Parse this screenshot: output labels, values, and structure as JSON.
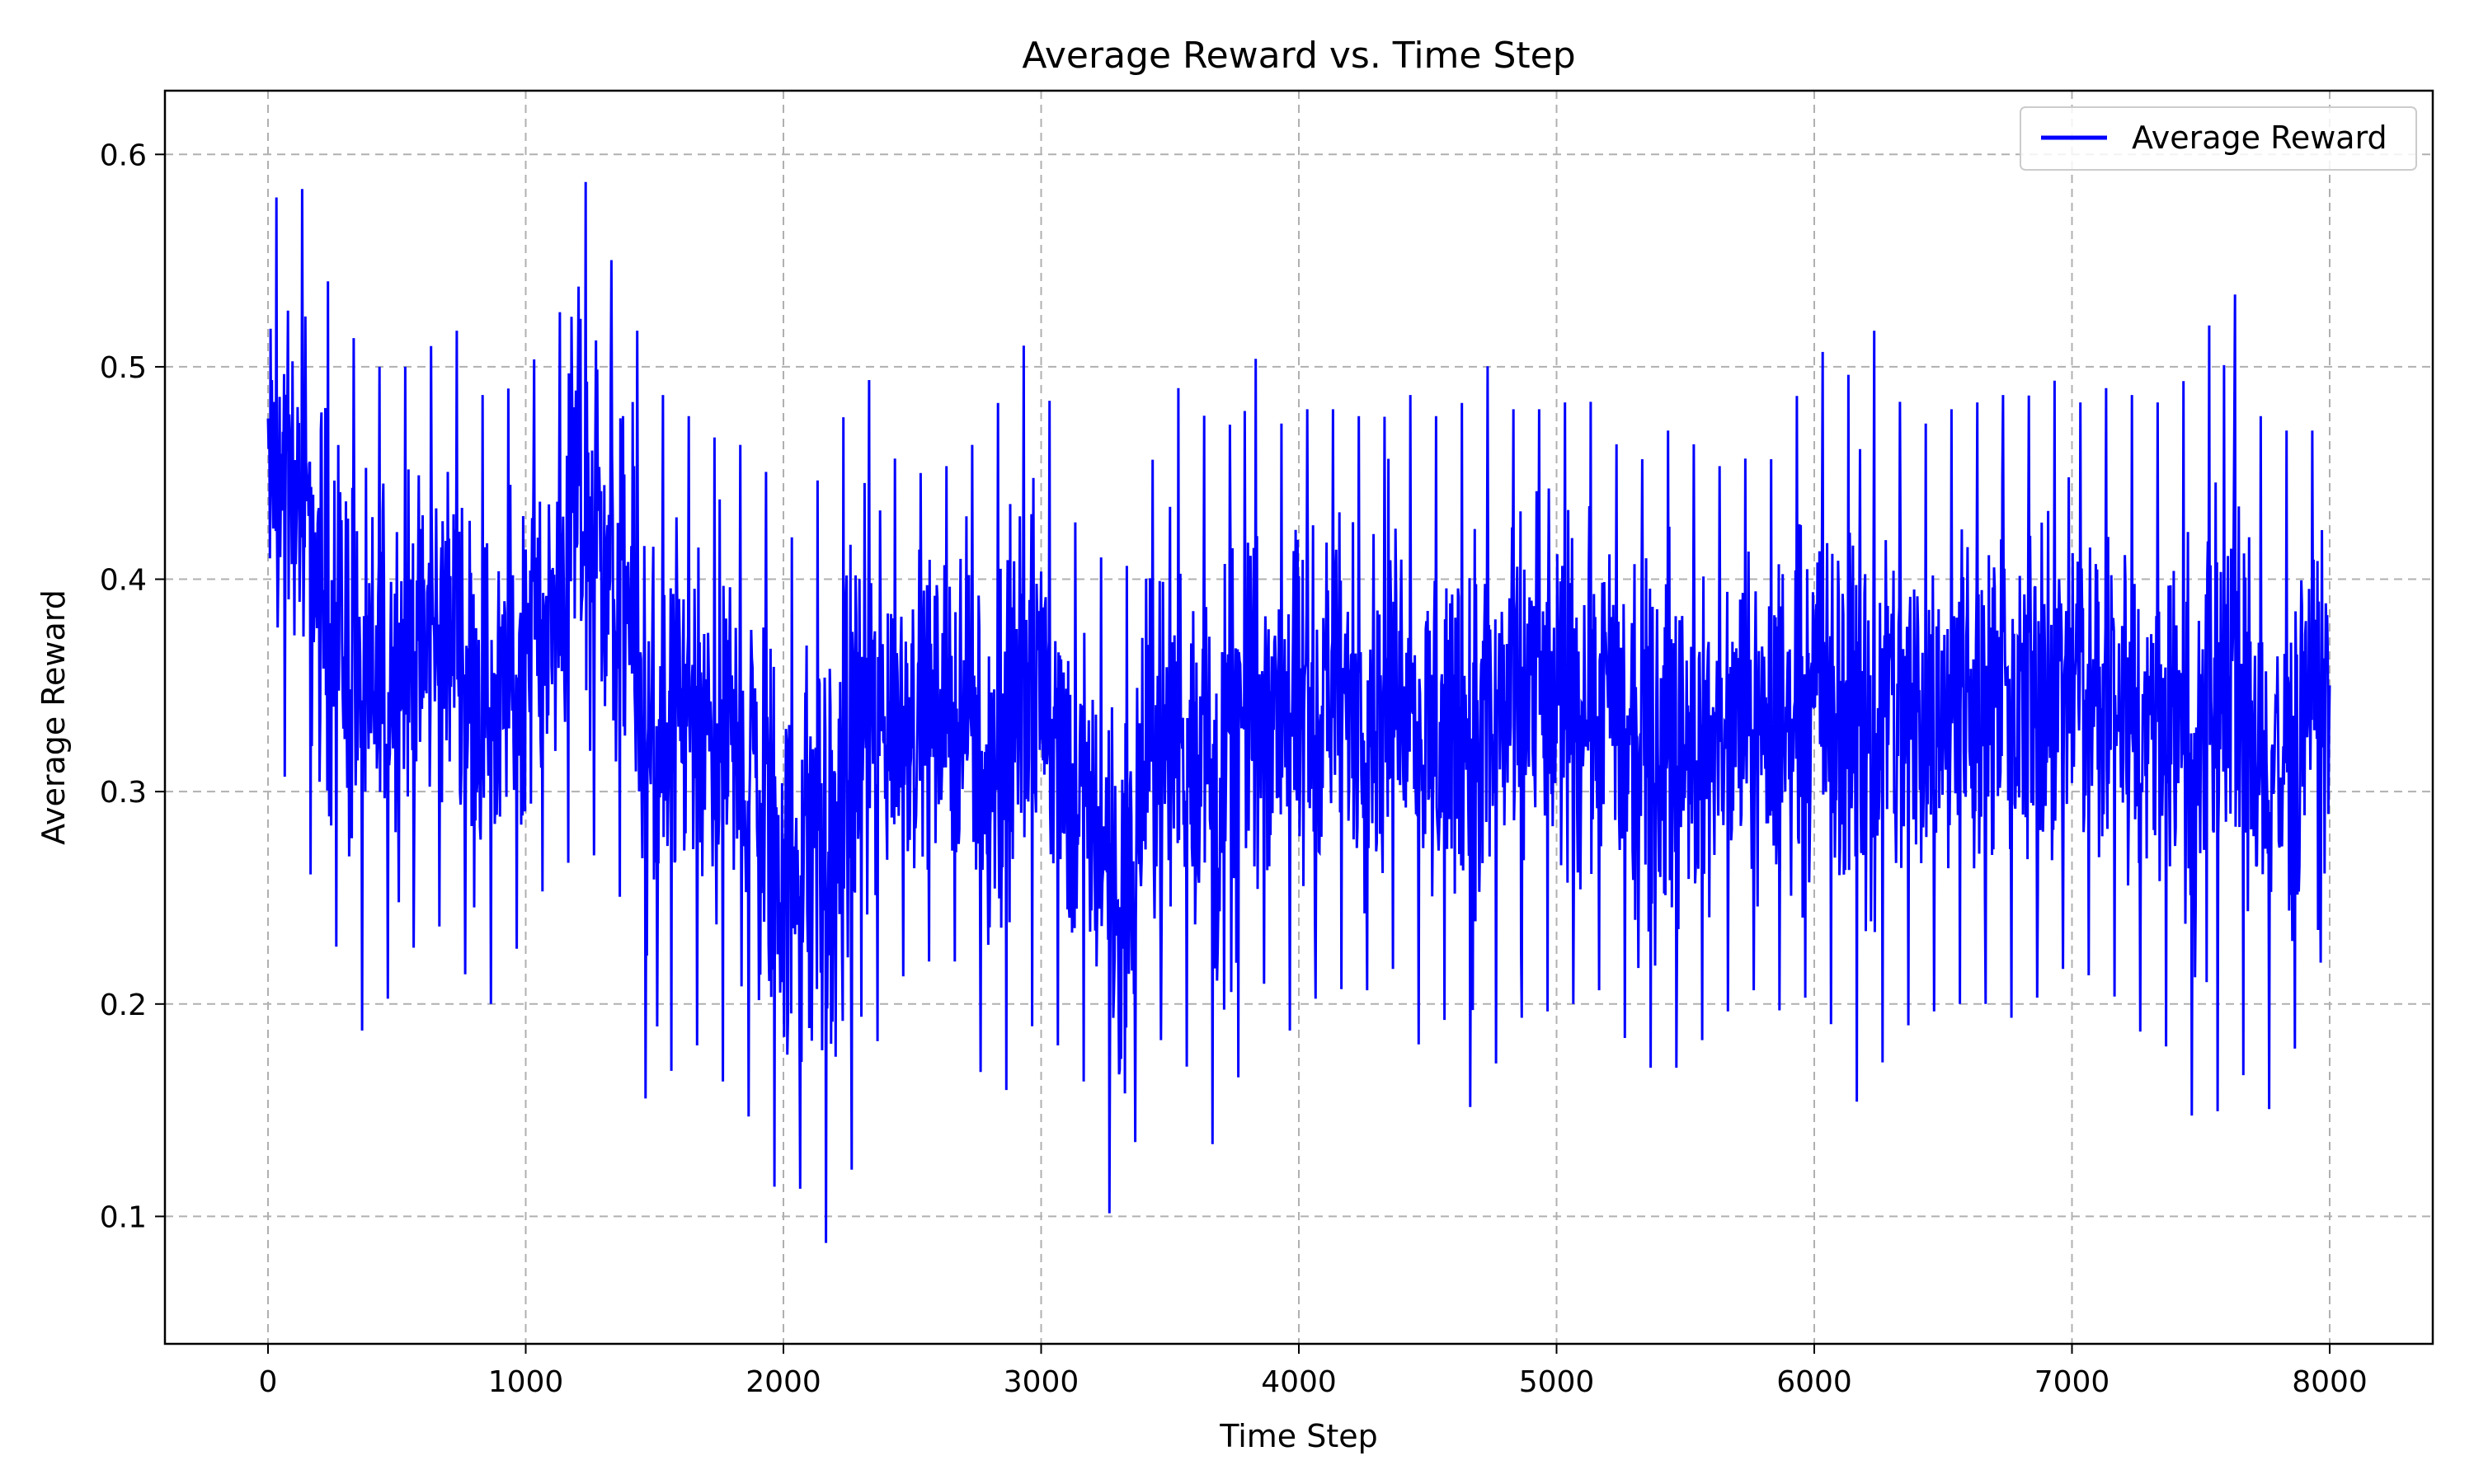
{
  "chart_data": {
    "type": "line",
    "title": "Average Reward vs. Time Step",
    "xlabel": "Time Step",
    "ylabel": "Average Reward",
    "xlim": [
      -400,
      8400
    ],
    "ylim": [
      0.04,
      0.63
    ],
    "xticks": [
      0,
      1000,
      2000,
      3000,
      4000,
      5000,
      6000,
      7000,
      8000
    ],
    "yticks": [
      0.1,
      0.2,
      0.3,
      0.4,
      0.5,
      0.6
    ],
    "grid": true,
    "legend_position": "top-right",
    "series": [
      {
        "name": "Average Reward",
        "color": "#0000ff",
        "x": [
          0,
          100,
          200,
          300,
          400,
          500,
          600,
          700,
          800,
          900,
          1000,
          1100,
          1200,
          1300,
          1400,
          1500,
          1600,
          1700,
          1800,
          1900,
          2000,
          2100,
          2200,
          2300,
          2400,
          2500,
          2600,
          2700,
          2800,
          2900,
          3000,
          3100,
          3200,
          3300,
          3400,
          3500,
          3600,
          3700,
          3800,
          3900,
          4000,
          4100,
          4200,
          4300,
          4400,
          4500,
          4600,
          4700,
          4800,
          4900,
          5000,
          5100,
          5200,
          5300,
          5400,
          5500,
          5600,
          5700,
          5800,
          5900,
          6000,
          6100,
          6200,
          6300,
          6400,
          6500,
          6600,
          6700,
          6800,
          6900,
          7000,
          7100,
          7200,
          7300,
          7400,
          7500,
          7600,
          7700,
          7800,
          7900,
          8000
        ],
        "min": [
          0.32,
          0.3,
          0.24,
          0.22,
          0.17,
          0.22,
          0.23,
          0.24,
          0.2,
          0.2,
          0.24,
          0.26,
          0.27,
          0.27,
          0.24,
          0.11,
          0.2,
          0.17,
          0.16,
          0.14,
          0.1,
          0.12,
          0.07,
          0.15,
          0.2,
          0.22,
          0.22,
          0.22,
          0.14,
          0.17,
          0.2,
          0.17,
          0.16,
          0.07,
          0.17,
          0.19,
          0.16,
          0.12,
          0.19,
          0.22,
          0.17,
          0.22,
          0.2,
          0.21,
          0.22,
          0.16,
          0.21,
          0.12,
          0.2,
          0.19,
          0.2,
          0.2,
          0.21,
          0.17,
          0.17,
          0.17,
          0.19,
          0.2,
          0.21,
          0.19,
          0.21,
          0.18,
          0.14,
          0.19,
          0.19,
          0.2,
          0.2,
          0.2,
          0.19,
          0.21,
          0.22,
          0.21,
          0.2,
          0.18,
          0.18,
          0.13,
          0.16,
          0.17,
          0.14,
          0.2,
          0.23
        ],
        "max": [
          0.57,
          0.6,
          0.55,
          0.52,
          0.5,
          0.5,
          0.5,
          0.53,
          0.49,
          0.48,
          0.51,
          0.49,
          0.6,
          0.56,
          0.53,
          0.49,
          0.48,
          0.47,
          0.46,
          0.47,
          0.41,
          0.44,
          0.46,
          0.51,
          0.46,
          0.45,
          0.45,
          0.46,
          0.47,
          0.51,
          0.51,
          0.43,
          0.42,
          0.39,
          0.44,
          0.49,
          0.49,
          0.45,
          0.52,
          0.47,
          0.48,
          0.48,
          0.48,
          0.47,
          0.49,
          0.48,
          0.47,
          0.51,
          0.48,
          0.48,
          0.48,
          0.49,
          0.47,
          0.45,
          0.47,
          0.47,
          0.45,
          0.46,
          0.45,
          0.47,
          0.52,
          0.48,
          0.53,
          0.49,
          0.47,
          0.48,
          0.48,
          0.49,
          0.48,
          0.5,
          0.48,
          0.49,
          0.49,
          0.48,
          0.49,
          0.5,
          0.56,
          0.48,
          0.47,
          0.47,
          0.47
        ]
      }
    ]
  }
}
